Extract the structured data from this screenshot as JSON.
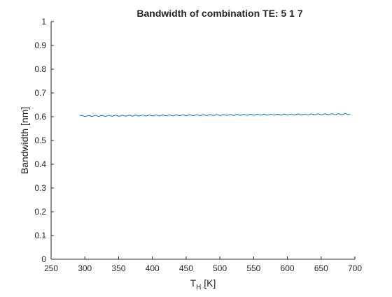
{
  "chart_data": {
    "type": "line",
    "title": "Bandwidth of combination TE: 5  1  7",
    "xlabel_main": "T",
    "xlabel_sub": "H",
    "xlabel_unit": " [K]",
    "ylabel": "Bandwidth [nm]",
    "xlim": [
      250,
      700
    ],
    "ylim": [
      0,
      1
    ],
    "xticks": [
      250,
      300,
      350,
      400,
      450,
      500,
      550,
      600,
      650,
      700
    ],
    "yticks": [
      0,
      0.1,
      0.2,
      0.3,
      0.4,
      0.5,
      0.6,
      0.7,
      0.8,
      0.9,
      1
    ],
    "grid": false,
    "legend": false,
    "series": [
      {
        "color": "#0072bd",
        "x_start": 293,
        "x_end": 693,
        "y_start": 0.603,
        "y_end": 0.611,
        "ripple_amplitude": 0.002,
        "ripple_period_x": 10
      }
    ]
  }
}
